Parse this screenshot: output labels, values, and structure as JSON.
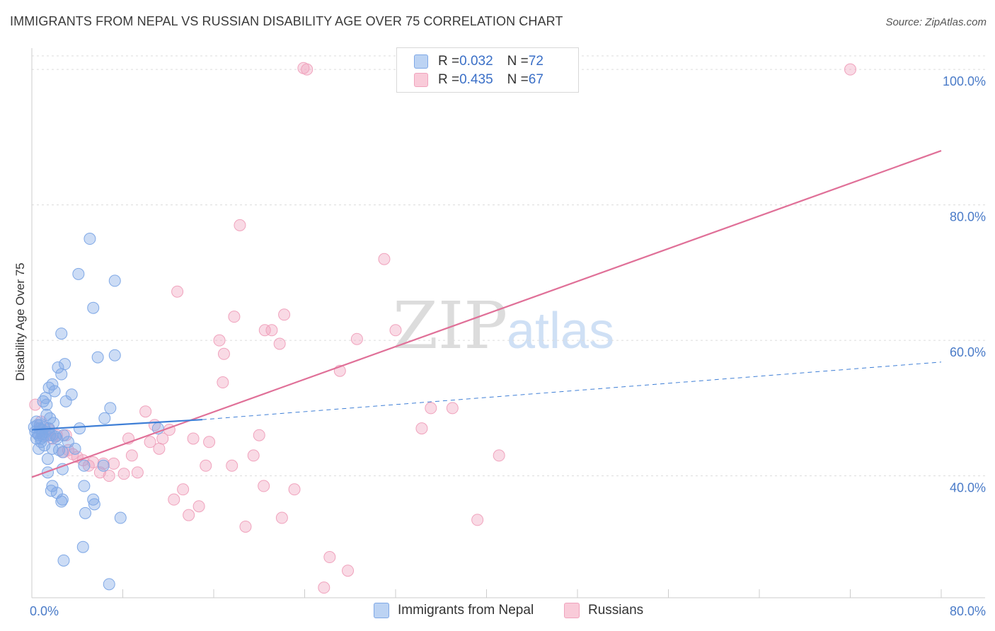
{
  "title": "IMMIGRANTS FROM NEPAL VS RUSSIAN DISABILITY AGE OVER 75 CORRELATION CHART",
  "source": "Source: ZipAtlas.com",
  "watermark": {
    "zip": "ZIP",
    "atlas": "atlas"
  },
  "colors": {
    "blue": "#7fa8e6",
    "blue_line": "#3f7fd6",
    "pink": "#f0a3bd",
    "pink_line": "#e07098",
    "axis_text": "#4a7bc8"
  },
  "legend": {
    "series1": {
      "r_label": "R = ",
      "r_value": "0.032",
      "n_label": "N = ",
      "n_value": "72"
    },
    "series2": {
      "r_label": "R = ",
      "r_value": "0.435",
      "n_label": "N = ",
      "n_value": "67"
    }
  },
  "chart_data": {
    "type": "scatter",
    "title": "IMMIGRANTS FROM NEPAL VS RUSSIAN DISABILITY AGE OVER 75 CORRELATION CHART",
    "xlabel": "",
    "ylabel": "Disability Age Over 75",
    "xlim": [
      0,
      80
    ],
    "ylim": [
      22,
      102
    ],
    "x_tick_labels": [
      "0.0%",
      "80.0%"
    ],
    "y_ticks": [
      40,
      60,
      80,
      100
    ],
    "y_tick_labels": [
      "40.0%",
      "60.0%",
      "80.0%",
      "100.0%"
    ],
    "grid": "horizontal dashed",
    "series": [
      {
        "name": "Immigrants from Nepal",
        "color": "#7fa8e6",
        "trend": {
          "x1": 0,
          "y1": 46.8,
          "x2": 15,
          "y2": 48.3,
          "dashed_to_x": 80,
          "dashed_to_y": 56.8
        },
        "points": [
          [
            0.3,
            46.5
          ],
          [
            0.5,
            47.5
          ],
          [
            0.6,
            46.0
          ],
          [
            0.8,
            45.5
          ],
          [
            0.4,
            48.0
          ],
          [
            0.7,
            47.0
          ],
          [
            0.9,
            46.2
          ],
          [
            1.0,
            45.8
          ],
          [
            0.2,
            47.2
          ],
          [
            1.2,
            46.5
          ],
          [
            1.5,
            47.0
          ],
          [
            1.8,
            46.0
          ],
          [
            0.6,
            44.0
          ],
          [
            1.1,
            44.5
          ],
          [
            1.4,
            42.5
          ],
          [
            1.6,
            48.5
          ],
          [
            1.3,
            49.0
          ],
          [
            1.0,
            51.0
          ],
          [
            1.2,
            51.5
          ],
          [
            1.5,
            53.0
          ],
          [
            1.8,
            53.5
          ],
          [
            2.0,
            52.5
          ],
          [
            2.3,
            56.0
          ],
          [
            2.6,
            55.0
          ],
          [
            2.9,
            56.5
          ],
          [
            3.0,
            51.0
          ],
          [
            3.5,
            52.0
          ],
          [
            2.6,
            61.0
          ],
          [
            4.1,
            69.8
          ],
          [
            5.1,
            75.0
          ],
          [
            5.4,
            64.8
          ],
          [
            5.8,
            57.5
          ],
          [
            7.3,
            68.8
          ],
          [
            7.3,
            57.8
          ],
          [
            6.9,
            50.0
          ],
          [
            6.4,
            48.5
          ],
          [
            4.2,
            47.0
          ],
          [
            2.8,
            46.0
          ],
          [
            2.2,
            45.5
          ],
          [
            3.2,
            45.0
          ],
          [
            2.4,
            43.8
          ],
          [
            2.7,
            43.5
          ],
          [
            1.8,
            44.0
          ],
          [
            1.4,
            40.5
          ],
          [
            1.8,
            38.5
          ],
          [
            1.7,
            37.8
          ],
          [
            2.2,
            37.5
          ],
          [
            2.6,
            36.2
          ],
          [
            2.7,
            36.5
          ],
          [
            4.6,
            38.5
          ],
          [
            5.4,
            36.5
          ],
          [
            5.5,
            35.8
          ],
          [
            4.7,
            34.5
          ],
          [
            7.8,
            33.8
          ],
          [
            4.5,
            29.5
          ],
          [
            2.8,
            27.5
          ],
          [
            6.8,
            24.0
          ],
          [
            2.7,
            41.0
          ],
          [
            4.6,
            41.5
          ],
          [
            6.3,
            41.5
          ],
          [
            0.4,
            45.5
          ],
          [
            0.8,
            45.0
          ],
          [
            1.1,
            47.2
          ],
          [
            1.9,
            47.8
          ],
          [
            3.8,
            44.0
          ],
          [
            2.1,
            45.8
          ],
          [
            0.9,
            46.8
          ],
          [
            1.6,
            46.0
          ],
          [
            0.5,
            46.3
          ],
          [
            11.1,
            47.0
          ],
          [
            1.3,
            50.5
          ],
          [
            0.7,
            47.5
          ]
        ]
      },
      {
        "name": "Russians",
        "color": "#f0a3bd",
        "trend": {
          "x1": 0,
          "y1": 39.8,
          "x2": 80,
          "y2": 88.0
        },
        "points": [
          [
            0.3,
            50.5
          ],
          [
            0.8,
            48.0
          ],
          [
            1.2,
            46.0
          ],
          [
            1.5,
            46.8
          ],
          [
            1.8,
            45.5
          ],
          [
            2.2,
            46.0
          ],
          [
            2.8,
            43.5
          ],
          [
            3.2,
            43.8
          ],
          [
            3.6,
            43.2
          ],
          [
            4.0,
            42.8
          ],
          [
            4.5,
            42.3
          ],
          [
            5.0,
            41.5
          ],
          [
            5.4,
            42.0
          ],
          [
            6.0,
            40.5
          ],
          [
            6.3,
            41.8
          ],
          [
            6.8,
            40.0
          ],
          [
            7.2,
            41.8
          ],
          [
            8.1,
            40.3
          ],
          [
            8.8,
            43.0
          ],
          [
            9.3,
            40.5
          ],
          [
            8.5,
            45.5
          ],
          [
            10.4,
            45.0
          ],
          [
            10.0,
            49.5
          ],
          [
            11.2,
            44.0
          ],
          [
            11.5,
            45.5
          ],
          [
            10.8,
            47.5
          ],
          [
            12.1,
            46.8
          ],
          [
            12.5,
            36.5
          ],
          [
            12.8,
            67.2
          ],
          [
            13.3,
            38.0
          ],
          [
            13.8,
            34.2
          ],
          [
            14.2,
            45.5
          ],
          [
            14.7,
            35.5
          ],
          [
            15.3,
            41.5
          ],
          [
            15.6,
            45.0
          ],
          [
            16.5,
            60.0
          ],
          [
            16.8,
            53.8
          ],
          [
            16.9,
            58.0
          ],
          [
            17.6,
            41.5
          ],
          [
            17.8,
            63.5
          ],
          [
            18.3,
            77.0
          ],
          [
            18.8,
            32.5
          ],
          [
            19.5,
            43.0
          ],
          [
            20.0,
            46.0
          ],
          [
            20.4,
            38.5
          ],
          [
            20.5,
            61.5
          ],
          [
            21.1,
            61.5
          ],
          [
            21.8,
            59.5
          ],
          [
            22.0,
            33.8
          ],
          [
            22.2,
            63.8
          ],
          [
            23.1,
            38.0
          ],
          [
            23.9,
            100.2
          ],
          [
            24.2,
            100.0
          ],
          [
            25.7,
            23.5
          ],
          [
            26.2,
            28.0
          ],
          [
            27.1,
            55.5
          ],
          [
            27.8,
            26.0
          ],
          [
            28.6,
            60.2
          ],
          [
            31.0,
            72.0
          ],
          [
            32.0,
            61.5
          ],
          [
            34.3,
            47.0
          ],
          [
            35.1,
            50.0
          ],
          [
            37.0,
            50.0
          ],
          [
            39.2,
            33.5
          ],
          [
            41.1,
            43.0
          ],
          [
            72.0,
            100.0
          ],
          [
            3.0,
            46.0
          ]
        ]
      }
    ]
  },
  "bottom_legend": {
    "series1_label": "Immigrants from Nepal",
    "series2_label": "Russians"
  }
}
